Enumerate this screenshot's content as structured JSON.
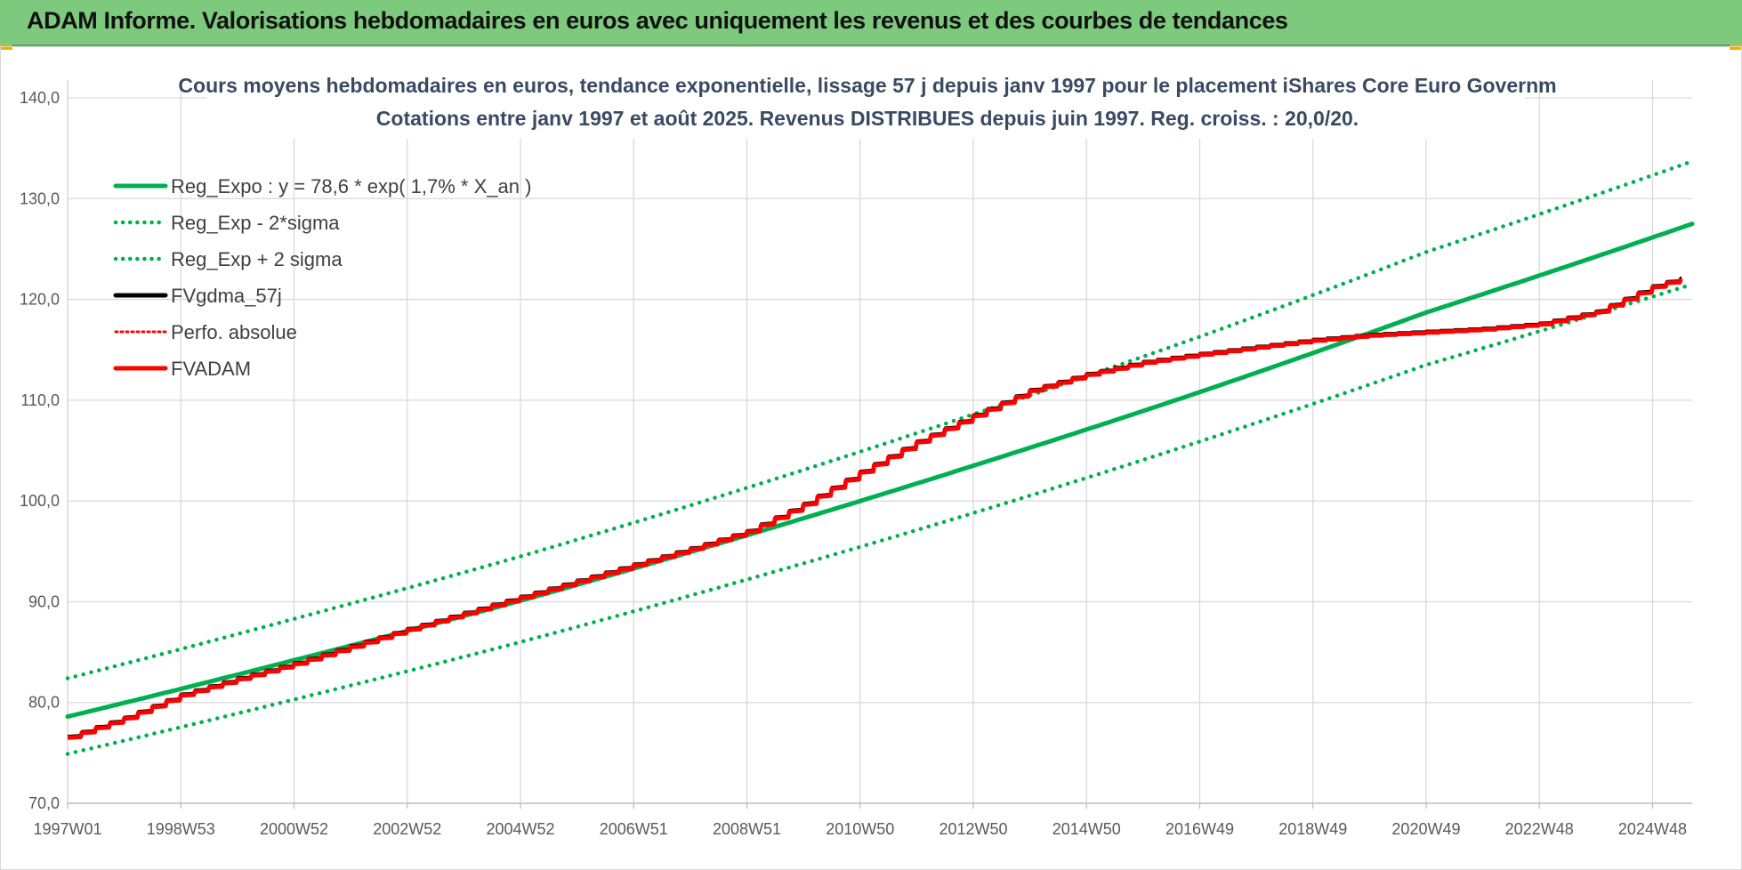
{
  "header": {
    "title": "ADAM Informe. Valorisations hebdomadaires en euros avec uniquement les revenus et des courbes de tendances"
  },
  "colors": {
    "header_bg": "#7dc97d",
    "green": "#00b050",
    "red": "#ff0000",
    "black": "#000000",
    "grid": "#d9d9d9"
  },
  "chart_data": {
    "type": "line",
    "title": "Cours moyens hebdomadaires en euros, tendance exponentielle, lissage 57 j depuis janv 1997 pour le placement iShares Core Euro Governm",
    "subtitle": "Cotations entre janv 1997 et août 2025.  Revenus DISTRIBUES depuis juin 1997.  Reg. croiss. : 20,0/20.",
    "xlabel": "",
    "ylabel": "",
    "ylim": [
      70,
      140
    ],
    "y_ticks": [
      "70,0",
      "80,0",
      "90,0",
      "100,0",
      "110,0",
      "120,0",
      "130,0",
      "140,0"
    ],
    "x_tick_labels": [
      "1997W01",
      "1998W53",
      "2000W52",
      "2002W52",
      "2004W52",
      "2006W51",
      "2008W51",
      "2010W50",
      "2012W50",
      "2014W50",
      "2016W49",
      "2018W49",
      "2020W49",
      "2022W48",
      "2024W48"
    ],
    "x_tick_years": [
      1997.0,
      1999.0,
      2001.0,
      2003.0,
      2005.0,
      2007.0,
      2009.0,
      2011.0,
      2013.0,
      2015.0,
      2017.0,
      2019.0,
      2021.0,
      2023.0,
      2025.0
    ],
    "xlim": [
      1997.0,
      2025.7
    ],
    "grid": true,
    "legend_position": "top-left",
    "series": [
      {
        "name": "Reg_Expo : y = 78,6 * exp( 1,7% *  X_an )",
        "style": "solid",
        "color": "#00b050",
        "x": [
          1997.0,
          2001.0,
          2005.0,
          2009.0,
          2013.0,
          2017.0,
          2021.0,
          2025.7
        ],
        "values": [
          78.6,
          84.2,
          90.1,
          96.6,
          103.5,
          110.8,
          118.7,
          127.5
        ]
      },
      {
        "name": "Reg_Exp - 2*sigma",
        "style": "dotted",
        "color": "#00b050",
        "x": [
          1997.0,
          2001.0,
          2005.0,
          2009.0,
          2013.0,
          2017.0,
          2021.0,
          2025.7
        ],
        "values": [
          74.9,
          80.3,
          86.0,
          92.2,
          98.8,
          105.9,
          113.5,
          121.5
        ]
      },
      {
        "name": "Reg_Exp + 2 sigma",
        "style": "dotted",
        "color": "#00b050",
        "x": [
          1997.0,
          2001.0,
          2005.0,
          2009.0,
          2013.0,
          2017.0,
          2021.0,
          2025.7
        ],
        "values": [
          82.4,
          88.3,
          94.5,
          101.3,
          108.6,
          116.3,
          124.7,
          133.7
        ]
      },
      {
        "name": "FVgdma_57j",
        "style": "solid",
        "color": "#000000",
        "x": [
          1997.0,
          1998.0,
          1999.0,
          2000.0,
          2001.0,
          2002.0,
          2003.0,
          2004.0,
          2005.0,
          2006.0,
          2007.0,
          2008.0,
          2009.0,
          2010.0,
          2011.0,
          2012.0,
          2013.0,
          2014.0,
          2015.0,
          2016.0,
          2017.0,
          2018.0,
          2019.0,
          2020.0,
          2021.0,
          2022.0,
          2023.0,
          2024.0,
          2025.0,
          2025.7
        ],
        "values": [
          76.6,
          78.5,
          80.8,
          82.4,
          83.9,
          85.6,
          87.3,
          88.9,
          90.5,
          92.1,
          93.7,
          95.3,
          97.0,
          99.7,
          102.9,
          105.9,
          108.5,
          111.0,
          112.6,
          113.8,
          114.6,
          115.3,
          116.0,
          116.5,
          116.8,
          117.1,
          117.6,
          118.8,
          121.3,
          122.5
        ]
      },
      {
        "name": "Perfo. absolue",
        "style": "dotted",
        "color": "#ff0000",
        "x": [
          1997.0,
          1998.0,
          1999.0,
          2000.0,
          2001.0,
          2002.0,
          2003.0,
          2004.0,
          2005.0,
          2006.0,
          2007.0,
          2008.0,
          2009.0,
          2010.0,
          2011.0,
          2012.0,
          2013.0,
          2014.0,
          2015.0,
          2016.0,
          2017.0,
          2018.0,
          2019.0,
          2020.0,
          2021.0,
          2022.0,
          2023.0,
          2024.0,
          2025.0,
          2025.7
        ],
        "values": [
          76.6,
          78.5,
          80.8,
          82.4,
          83.9,
          85.6,
          87.3,
          88.9,
          90.5,
          92.1,
          93.7,
          95.3,
          97.0,
          99.7,
          102.9,
          105.9,
          108.5,
          111.0,
          112.6,
          113.8,
          114.6,
          115.3,
          116.0,
          116.5,
          116.8,
          117.1,
          117.6,
          118.8,
          121.3,
          122.5
        ]
      },
      {
        "name": "FVADAM",
        "style": "solid",
        "color": "#ff0000",
        "x": [
          1997.0,
          1998.0,
          1999.0,
          2000.0,
          2001.0,
          2002.0,
          2003.0,
          2004.0,
          2005.0,
          2006.0,
          2007.0,
          2008.0,
          2009.0,
          2010.0,
          2011.0,
          2012.0,
          2013.0,
          2014.0,
          2015.0,
          2016.0,
          2017.0,
          2018.0,
          2019.0,
          2020.0,
          2021.0,
          2022.0,
          2023.0,
          2024.0,
          2025.0,
          2025.7
        ],
        "values": [
          76.6,
          78.5,
          80.8,
          82.4,
          83.9,
          85.6,
          87.3,
          88.9,
          90.5,
          92.1,
          93.7,
          95.3,
          97.0,
          99.7,
          102.9,
          105.9,
          108.5,
          111.0,
          112.6,
          113.8,
          114.6,
          115.3,
          116.0,
          116.5,
          116.8,
          117.1,
          117.6,
          118.8,
          121.3,
          122.5
        ]
      }
    ]
  }
}
